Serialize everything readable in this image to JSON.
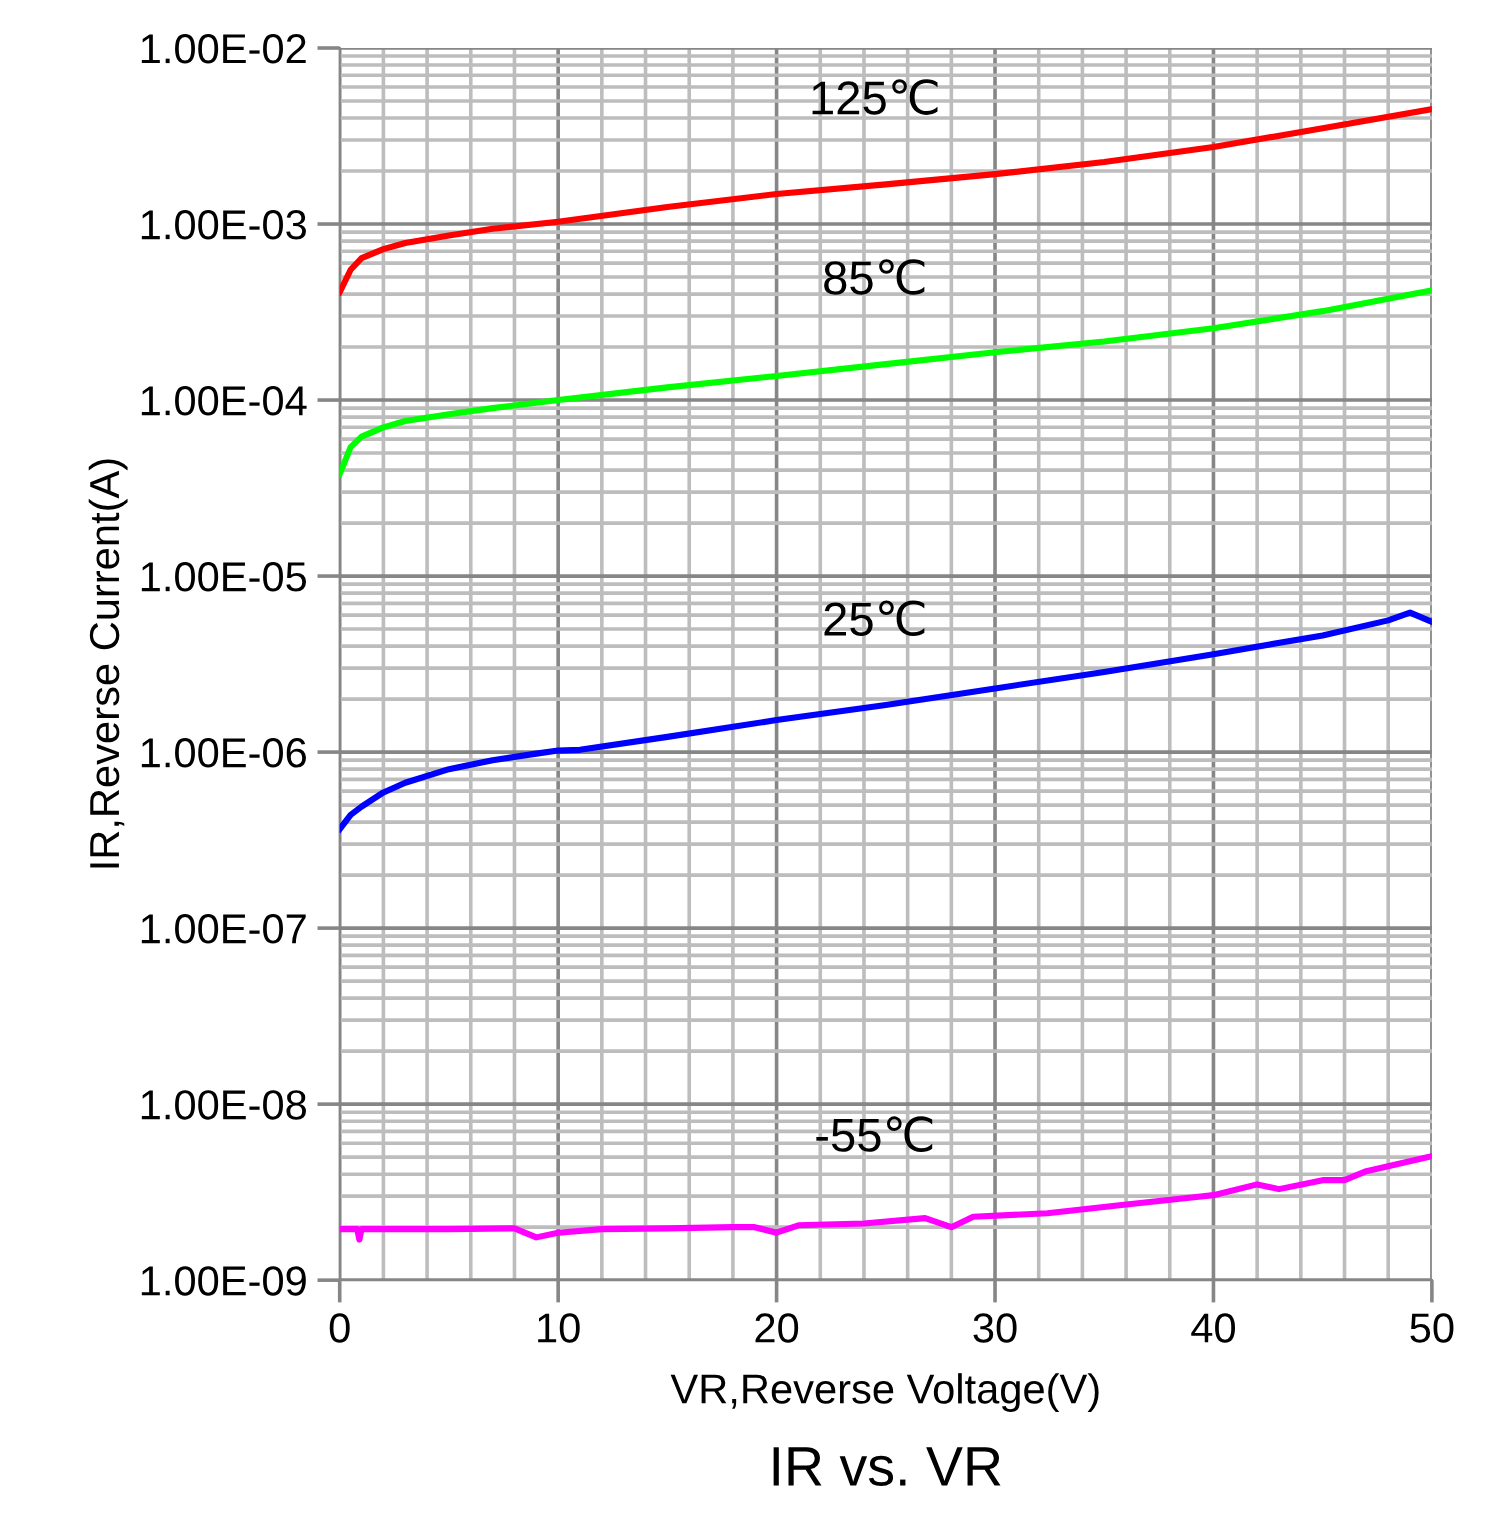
{
  "chart_data": {
    "type": "line",
    "title": "IR vs. VR",
    "xlabel": "VR,Reverse Voltage(V)",
    "ylabel": "IR,Reverse Current(A)",
    "log": "y",
    "grid": true,
    "legend": false,
    "marker": "none",
    "line_style": "solid",
    "xlim": [
      0,
      50
    ],
    "xticks": [
      0,
      10,
      20,
      30,
      40,
      50
    ],
    "ylim": [
      1e-09,
      0.01
    ],
    "yticks": [
      {
        "value": 1e-09,
        "label": "1.00E-09"
      },
      {
        "value": 1e-08,
        "label": "1.00E-08"
      },
      {
        "value": 1e-07,
        "label": "1.00E-07"
      },
      {
        "value": 1e-06,
        "label": "1.00E-06"
      },
      {
        "value": 1e-05,
        "label": "1.00E-05"
      },
      {
        "value": 0.0001,
        "label": "1.00E-04"
      },
      {
        "value": 0.001,
        "label": "1.00E-03"
      },
      {
        "value": 0.01,
        "label": "1.00E-02"
      }
    ],
    "series": [
      {
        "name": "125℃",
        "color": "#ff0000",
        "x": [
          0,
          0.5,
          1,
          2,
          3,
          5,
          7,
          10,
          15,
          20,
          25,
          30,
          35,
          40,
          45,
          50
        ],
        "values": [
          0.00041,
          0.00055,
          0.00064,
          0.00072,
          0.00078,
          0.00086,
          0.00094,
          0.00103,
          0.00125,
          0.00148,
          0.00168,
          0.00192,
          0.00225,
          0.00274,
          0.0035,
          0.0045
        ]
      },
      {
        "name": "85℃",
        "color": "#00ff00",
        "x": [
          0,
          0.5,
          1,
          2,
          3,
          5,
          7,
          10,
          15,
          20,
          25,
          30,
          35,
          40,
          45,
          50
        ],
        "values": [
          3.8e-05,
          5.4e-05,
          6.2e-05,
          7e-05,
          7.6e-05,
          8.3e-05,
          9e-05,
          0.0001,
          0.000118,
          0.000137,
          0.00016,
          0.000187,
          0.000215,
          0.000256,
          0.00032,
          0.00042
        ]
      },
      {
        "name": "25℃",
        "color": "#0000ff",
        "x": [
          0,
          0.5,
          1,
          2,
          3,
          5,
          7,
          9,
          10,
          11,
          15,
          20,
          25,
          30,
          35,
          40,
          45,
          48,
          49,
          50
        ],
        "values": [
          3.65e-07,
          4.4e-07,
          4.9e-07,
          5.9e-07,
          6.7e-07,
          8e-07,
          9e-07,
          9.8e-07,
          1.02e-06,
          1.03e-06,
          1.22e-06,
          1.52e-06,
          1.85e-06,
          2.3e-06,
          2.85e-06,
          3.6e-06,
          4.6e-06,
          5.6e-06,
          6.2e-06,
          5.5e-06
        ]
      },
      {
        "name": "-55℃",
        "color": "#ff00ff",
        "x": [
          0,
          0.8,
          0.9,
          1,
          3,
          5,
          8,
          9,
          10,
          12,
          15,
          18,
          19,
          20,
          21,
          24,
          26.8,
          28,
          29,
          32.4,
          35.8,
          39,
          40,
          42,
          43,
          45,
          46,
          47,
          50
        ],
        "values": [
          1.95e-09,
          1.95e-09,
          1.7e-09,
          1.95e-09,
          1.95e-09,
          1.95e-09,
          1.97e-09,
          1.75e-09,
          1.86e-09,
          1.95e-09,
          1.97e-09,
          2e-09,
          2e-09,
          1.86e-09,
          2.05e-09,
          2.1e-09,
          2.25e-09,
          2e-09,
          2.29e-09,
          2.4e-09,
          2.67e-09,
          2.95e-09,
          3.04e-09,
          3.5e-09,
          3.29e-09,
          3.7e-09,
          3.7e-09,
          4.16e-09,
          5.07e-09
        ]
      }
    ]
  }
}
